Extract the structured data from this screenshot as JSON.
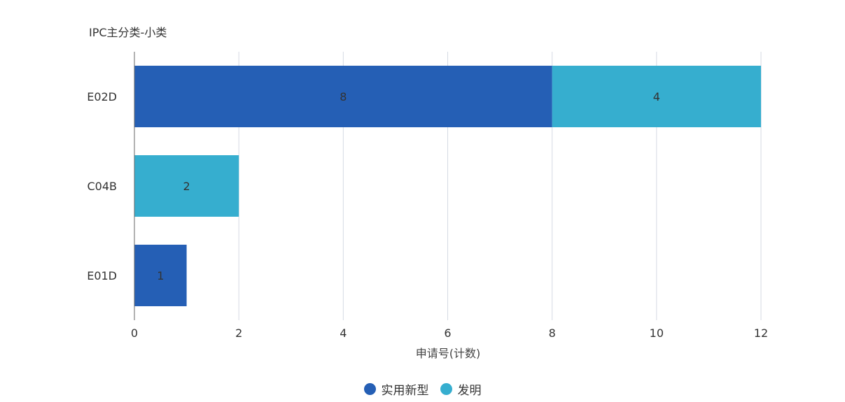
{
  "chart_data": {
    "type": "bar",
    "orientation": "horizontal",
    "stacked": true,
    "ylabel": "IPC主分类-小类",
    "xlabel": "申请号(计数)",
    "categories": [
      "E02D",
      "C04B",
      "E01D"
    ],
    "series": [
      {
        "name": "实用新型",
        "color": "#255FB5",
        "values": [
          8,
          0,
          1
        ]
      },
      {
        "name": "发明",
        "color": "#36AECF",
        "values": [
          4,
          2,
          0
        ]
      }
    ],
    "xlim": [
      0,
      12
    ],
    "xticks": [
      0,
      2,
      4,
      6,
      8,
      10,
      12
    ],
    "grid": true,
    "legend_position": "bottom-center"
  }
}
